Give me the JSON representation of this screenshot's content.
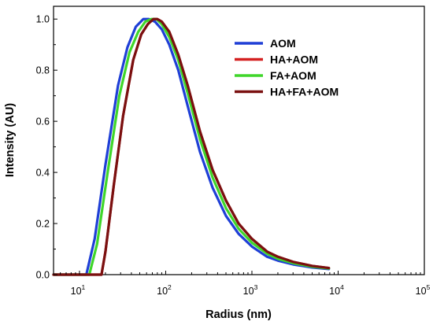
{
  "chart_data": {
    "type": "line",
    "xlabel": "Radius (nm)",
    "ylabel": "Intensity (AU)",
    "x_scale": "log",
    "xlim": [
      5,
      100000
    ],
    "ylim": [
      0.0,
      1.05
    ],
    "grid": false,
    "legend_position": "top-right",
    "x_ticks": [
      {
        "base": "10",
        "exp": "1",
        "value": 10
      },
      {
        "base": "10",
        "exp": "2",
        "value": 100
      },
      {
        "base": "10",
        "exp": "3",
        "value": 1000
      },
      {
        "base": "10",
        "exp": "4",
        "value": 10000
      },
      {
        "base": "10",
        "exp": "5",
        "value": 100000
      }
    ],
    "y_ticks": [
      {
        "label": "0.0",
        "value": 0.0
      },
      {
        "label": "0.2",
        "value": 0.2
      },
      {
        "label": "0.4",
        "value": 0.4
      },
      {
        "label": "0.6",
        "value": 0.6
      },
      {
        "label": "0.8",
        "value": 0.8
      },
      {
        "label": "1.0",
        "value": 1.0
      }
    ],
    "series": [
      {
        "name": "AOM",
        "color": "#1f3fd6",
        "x": [
          5,
          12,
          15,
          20,
          28,
          36,
          45,
          55,
          64,
          75,
          90,
          110,
          140,
          180,
          250,
          350,
          500,
          700,
          1000,
          1500,
          2000,
          3000,
          5000,
          7800
        ],
        "y": [
          0.0,
          0.0,
          0.14,
          0.43,
          0.74,
          0.89,
          0.97,
          1.0,
          1.0,
          0.99,
          0.96,
          0.9,
          0.8,
          0.66,
          0.48,
          0.34,
          0.23,
          0.16,
          0.11,
          0.07,
          0.055,
          0.04,
          0.028,
          0.022
        ]
      },
      {
        "name": "HA+AOM",
        "color": "#d42020",
        "x": [
          5,
          18,
          20,
          25,
          32,
          42,
          52,
          62,
          72,
          80,
          90,
          110,
          140,
          180,
          250,
          350,
          500,
          700,
          1000,
          1500,
          2000,
          3000,
          5000,
          7800
        ],
        "y": [
          0.0,
          0.0,
          0.09,
          0.35,
          0.62,
          0.84,
          0.94,
          0.98,
          1.0,
          1.0,
          0.99,
          0.95,
          0.86,
          0.74,
          0.56,
          0.41,
          0.29,
          0.2,
          0.14,
          0.09,
          0.07,
          0.05,
          0.034,
          0.026
        ]
      },
      {
        "name": "FA+AOM",
        "color": "#3fd62a",
        "x": [
          5,
          13,
          16,
          21,
          29,
          38,
          48,
          58,
          68,
          78,
          90,
          110,
          140,
          180,
          250,
          350,
          500,
          700,
          1000,
          1500,
          2000,
          3000,
          5000,
          7800
        ],
        "y": [
          0.0,
          0.0,
          0.12,
          0.39,
          0.7,
          0.87,
          0.95,
          0.99,
          1.0,
          1.0,
          0.98,
          0.93,
          0.84,
          0.71,
          0.53,
          0.38,
          0.26,
          0.18,
          0.125,
          0.082,
          0.062,
          0.045,
          0.031,
          0.024
        ]
      },
      {
        "name": "HA+FA+AOM",
        "color": "#7a1010",
        "x": [
          5,
          18,
          20,
          25,
          32,
          42,
          52,
          62,
          72,
          80,
          90,
          110,
          140,
          180,
          250,
          350,
          500,
          700,
          1000,
          1500,
          2000,
          3000,
          5000,
          7800
        ],
        "y": [
          0.0,
          0.0,
          0.09,
          0.35,
          0.62,
          0.84,
          0.94,
          0.98,
          1.0,
          1.0,
          0.99,
          0.95,
          0.86,
          0.74,
          0.56,
          0.41,
          0.29,
          0.2,
          0.14,
          0.09,
          0.07,
          0.05,
          0.034,
          0.026
        ]
      }
    ]
  }
}
